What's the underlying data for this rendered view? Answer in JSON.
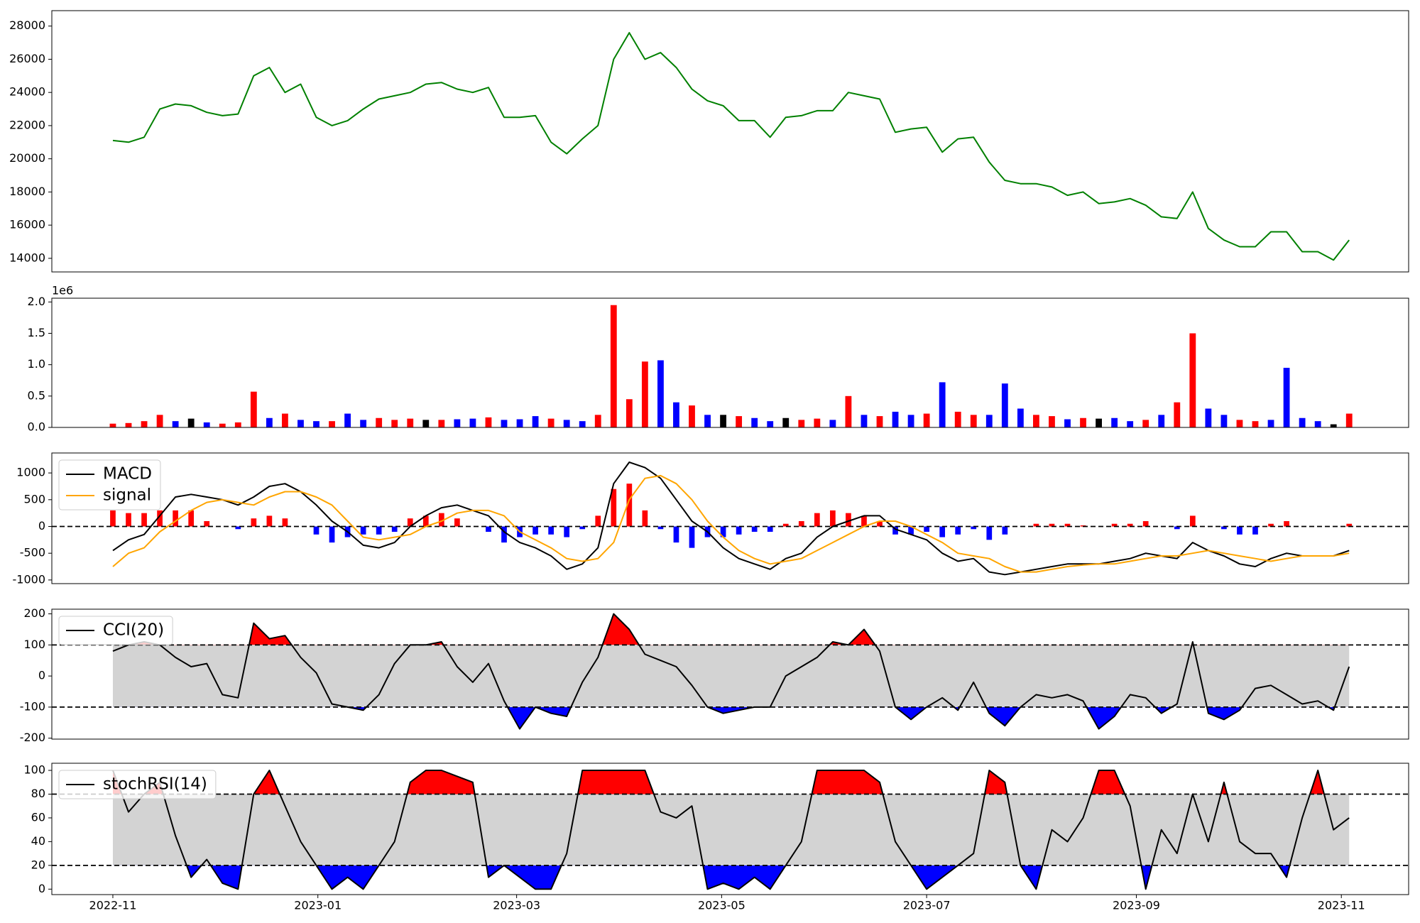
{
  "chart_data": [
    {
      "type": "line",
      "xlim": [
        -3.9,
        82.8
      ],
      "ylim": [
        13180,
        28930
      ],
      "yticks": [
        14000,
        16000,
        18000,
        20000,
        22000,
        24000,
        26000,
        28000
      ],
      "grid": false,
      "series": [
        {
          "name": null,
          "color": "#008000",
          "values": [
            21100,
            21000,
            21300,
            23000,
            23300,
            23200,
            22800,
            22600,
            22700,
            25000,
            25500,
            24000,
            24500,
            22500,
            22000,
            22300,
            23000,
            23600,
            23800,
            24000,
            24500,
            24600,
            24200,
            24000,
            24300,
            22500,
            22500,
            22600,
            21000,
            20300,
            21200,
            22000,
            26000,
            27600,
            26000,
            26400,
            25500,
            24200,
            23500,
            23200,
            22300,
            22300,
            21300,
            22500,
            22600,
            22900,
            22900,
            24000,
            23800,
            23600,
            21600,
            21800,
            21900,
            20400,
            21200,
            21300,
            19800,
            18700,
            18500,
            18500,
            18300,
            17800,
            18000,
            17300,
            17400,
            17600,
            17200,
            16500,
            16400,
            18000,
            15800,
            15100,
            14700,
            14700,
            15600,
            15600,
            14400,
            14400,
            13900,
            15100
          ]
        }
      ]
    },
    {
      "type": "bar",
      "xlim": [
        -3.9,
        82.8
      ],
      "ylim": [
        0,
        2.06
      ],
      "yticks": [
        {
          "value": 0,
          "label": "0.0"
        },
        0.5,
        {
          "value": 1,
          "label": "1.0"
        },
        1.5,
        {
          "value": 2,
          "label": "2.0"
        }
      ],
      "offset_text": "1e6",
      "grid": false,
      "values": [
        0.06,
        0.07,
        0.1,
        0.2,
        0.1,
        0.14,
        0.08,
        0.06,
        0.08,
        0.57,
        0.15,
        0.22,
        0.12,
        0.1,
        0.1,
        0.22,
        0.12,
        0.15,
        0.12,
        0.14,
        0.12,
        0.12,
        0.13,
        0.14,
        0.16,
        0.12,
        0.13,
        0.18,
        0.14,
        0.12,
        0.1,
        0.2,
        1.95,
        0.45,
        1.05,
        1.07,
        0.4,
        0.35,
        0.2,
        0.2,
        0.18,
        0.15,
        0.1,
        0.15,
        0.12,
        0.14,
        0.12,
        0.5,
        0.2,
        0.18,
        0.25,
        0.2,
        0.22,
        0.72,
        0.25,
        0.2,
        0.2,
        0.7,
        0.3,
        0.2,
        0.18,
        0.13,
        0.15,
        0.14,
        0.15,
        0.1,
        0.12,
        0.2,
        0.4,
        1.5,
        0.3,
        0.2,
        0.12,
        0.1,
        0.12,
        0.95,
        0.15,
        0.1,
        0.05,
        0.22
      ],
      "colors": [
        "red",
        "red",
        "red",
        "red",
        "blue",
        "black",
        "blue",
        "red",
        "red",
        "red",
        "blue",
        "red",
        "blue",
        "blue",
        "red",
        "blue",
        "blue",
        "red",
        "red",
        "red",
        "black",
        "red",
        "blue",
        "blue",
        "red",
        "blue",
        "blue",
        "blue",
        "red",
        "blue",
        "blue",
        "red",
        "red",
        "red",
        "red",
        "blue",
        "blue",
        "red",
        "blue",
        "black",
        "red",
        "blue",
        "blue",
        "black",
        "red",
        "red",
        "blue",
        "red",
        "blue",
        "red",
        "blue",
        "blue",
        "red",
        "blue",
        "red",
        "red",
        "blue",
        "blue",
        "blue",
        "red",
        "red",
        "blue",
        "red",
        "black",
        "blue",
        "blue",
        "red",
        "blue",
        "red",
        "red",
        "blue",
        "blue",
        "red",
        "red",
        "blue",
        "blue",
        "blue",
        "blue",
        "black",
        "red"
      ]
    },
    {
      "type": "line",
      "xlim": [
        -3.9,
        82.8
      ],
      "ylim": [
        -1068,
        1373
      ],
      "yticks": [
        -1000,
        -500,
        0,
        500,
        1000
      ],
      "grid": false,
      "legend": "upper left",
      "hlines": [
        0
      ],
      "histogram": {
        "pos_color": "red",
        "neg_color": "blue",
        "values": [
          300,
          250,
          250,
          300,
          300,
          300,
          100,
          0,
          -50,
          150,
          200,
          150,
          0,
          -150,
          -300,
          -200,
          -150,
          -150,
          -100,
          150,
          200,
          250,
          150,
          0,
          -100,
          -300,
          -200,
          -150,
          -150,
          -200,
          -50,
          200,
          700,
          800,
          300,
          -50,
          -300,
          -400,
          -200,
          -200,
          -150,
          -100,
          -100,
          50,
          100,
          250,
          300,
          250,
          200,
          100,
          -150,
          -150,
          -100,
          -200,
          -150,
          -50,
          -250,
          -150,
          0,
          50,
          50,
          50,
          20,
          0,
          50,
          50,
          100,
          0,
          -50,
          200,
          0,
          -50,
          -150,
          -150,
          50,
          100,
          0,
          0,
          0,
          50
        ]
      },
      "series": [
        {
          "name": "MACD",
          "color": "black",
          "values": [
            -450,
            -250,
            -150,
            200,
            550,
            600,
            550,
            500,
            400,
            550,
            750,
            800,
            650,
            400,
            100,
            -100,
            -350,
            -400,
            -300,
            0,
            200,
            350,
            400,
            300,
            200,
            -100,
            -300,
            -400,
            -550,
            -800,
            -700,
            -400,
            800,
            1200,
            1100,
            900,
            500,
            100,
            -100,
            -400,
            -600,
            -700,
            -800,
            -600,
            -500,
            -200,
            0,
            100,
            200,
            200,
            -50,
            -150,
            -250,
            -500,
            -650,
            -600,
            -850,
            -900,
            -850,
            -800,
            -750,
            -700,
            -700,
            -700,
            -650,
            -600,
            -500,
            -550,
            -600,
            -300,
            -450,
            -550,
            -700,
            -750,
            -600,
            -500,
            -550,
            -550,
            -550,
            -450
          ]
        },
        {
          "name": "signal",
          "color": "orange",
          "values": [
            -750,
            -500,
            -400,
            -100,
            100,
            300,
            450,
            500,
            450,
            400,
            550,
            650,
            650,
            550,
            400,
            100,
            -200,
            -250,
            -200,
            -150,
            0,
            100,
            250,
            300,
            300,
            200,
            -100,
            -250,
            -400,
            -600,
            -650,
            -600,
            -300,
            500,
            900,
            950,
            800,
            500,
            100,
            -200,
            -450,
            -600,
            -700,
            -650,
            -600,
            -450,
            -300,
            -150,
            0,
            100,
            100,
            0,
            -150,
            -300,
            -500,
            -550,
            -600,
            -750,
            -850,
            -850,
            -800,
            -750,
            -720,
            -700,
            -700,
            -650,
            -600,
            -550,
            -550,
            -500,
            -450,
            -500,
            -550,
            -600,
            -650,
            -600,
            -550,
            -550,
            -550,
            -500
          ]
        }
      ]
    },
    {
      "type": "line",
      "xlim": [
        -3.9,
        82.8
      ],
      "ylim": [
        -203,
        215
      ],
      "yticks": [
        -200,
        -100,
        0,
        100,
        200
      ],
      "grid": false,
      "legend": "upper left",
      "hlines": [
        100,
        -100
      ],
      "band_color": "lightgray",
      "above_color": "red",
      "below_color": "blue",
      "series": [
        {
          "name": "CCI(20)",
          "color": "black",
          "values": [
            80,
            100,
            110,
            100,
            60,
            30,
            40,
            -60,
            -70,
            170,
            120,
            130,
            60,
            10,
            -90,
            -100,
            -110,
            -60,
            40,
            100,
            100,
            110,
            30,
            -20,
            40,
            -80,
            -170,
            -100,
            -120,
            -130,
            -20,
            60,
            200,
            150,
            70,
            50,
            30,
            -30,
            -100,
            -120,
            -110,
            -100,
            -100,
            0,
            30,
            60,
            110,
            100,
            150,
            80,
            -100,
            -140,
            -100,
            -70,
            -110,
            -20,
            -120,
            -160,
            -100,
            -60,
            -70,
            -60,
            -80,
            -170,
            -130,
            -60,
            -70,
            -120,
            -90,
            110,
            -120,
            -140,
            -110,
            -40,
            -30,
            -60,
            -90,
            -80,
            -110,
            30
          ]
        }
      ]
    },
    {
      "type": "line",
      "xlim": [
        -3.9,
        82.8
      ],
      "ylim": [
        -4.6,
        106
      ],
      "yticks": [
        0,
        20,
        40,
        60,
        80,
        100
      ],
      "grid": false,
      "legend": "upper left",
      "hlines": [
        80,
        20
      ],
      "band_color": "lightgray",
      "above_color": "red",
      "below_color": "blue",
      "xticks": [
        {
          "value": 0,
          "label": "2022-11"
        },
        {
          "value": 13.1,
          "label": "2023-01"
        },
        {
          "value": 25.8,
          "label": "2023-03"
        },
        {
          "value": 38.9,
          "label": "2023-05"
        },
        {
          "value": 52,
          "label": "2023-07"
        },
        {
          "value": 65.4,
          "label": "2023-09"
        },
        {
          "value": 78.5,
          "label": "2023-11"
        }
      ],
      "series": [
        {
          "name": "stochRSI(14)",
          "color": "black",
          "values": [
            100,
            65,
            80,
            90,
            45,
            10,
            25,
            5,
            0,
            80,
            100,
            70,
            40,
            20,
            0,
            10,
            0,
            20,
            40,
            90,
            100,
            100,
            95,
            90,
            10,
            20,
            10,
            0,
            0,
            30,
            100,
            100,
            100,
            100,
            100,
            65,
            60,
            70,
            0,
            5,
            0,
            10,
            0,
            20,
            40,
            100,
            100,
            100,
            100,
            90,
            40,
            20,
            0,
            10,
            20,
            30,
            100,
            90,
            20,
            0,
            50,
            40,
            60,
            100,
            100,
            70,
            0,
            50,
            30,
            80,
            40,
            90,
            40,
            30,
            30,
            10,
            60,
            100,
            50,
            60
          ]
        }
      ]
    }
  ]
}
